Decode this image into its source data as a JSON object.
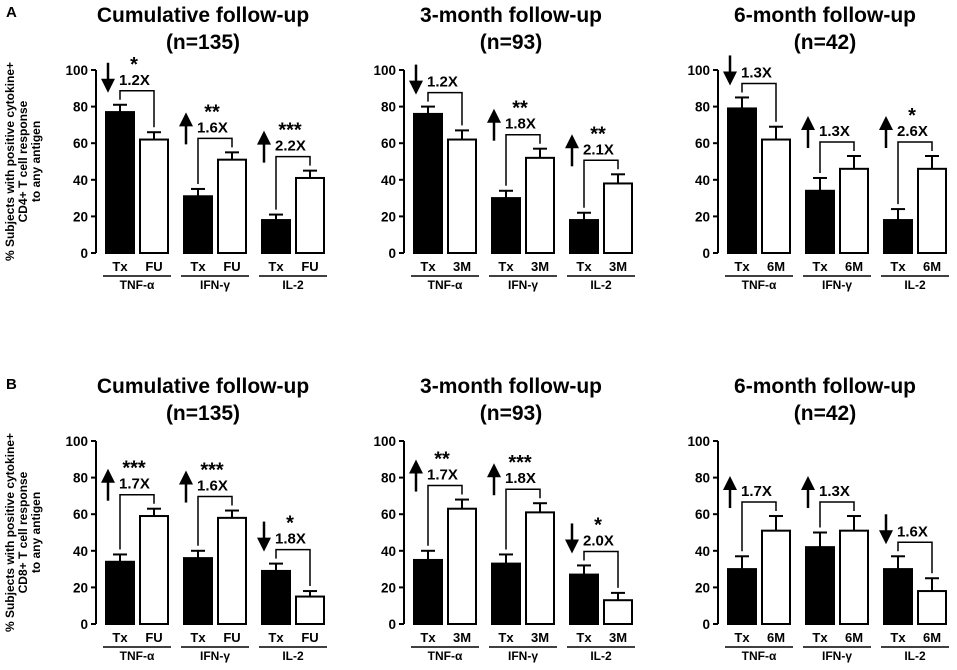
{
  "colors": {
    "treated_fill": "#000000",
    "followup_fill": "#ffffff",
    "stroke": "#000000"
  },
  "chart_data": [
    {
      "type": "bar",
      "panel": "A",
      "title": "Cumulative follow-up",
      "subtitle": "(n=135)",
      "ylabel": "% Subjects with positive cytokine+ CD4+ T cell response to any antigen",
      "ylim": [
        0,
        100
      ],
      "yticks": [
        "0",
        "20",
        "40",
        "60",
        "80",
        "100"
      ],
      "categories": [
        "Tx",
        "FU",
        "Tx",
        "FU",
        "Tx",
        "FU"
      ],
      "groups": [
        "TNF-α",
        "IFN-γ",
        "IL-2"
      ],
      "values": [
        77,
        62,
        31,
        51,
        18,
        41
      ],
      "errors": [
        4,
        4,
        4,
        4,
        3,
        4
      ],
      "annotations": [
        {
          "stars": "*",
          "fold": "1.2X",
          "direction": "down"
        },
        {
          "stars": "**",
          "fold": "1.6X",
          "direction": "up"
        },
        {
          "stars": "***",
          "fold": "2.2X",
          "direction": "up"
        }
      ]
    },
    {
      "type": "bar",
      "panel": "A",
      "title": "3-month follow-up",
      "subtitle": "(n=93)",
      "ylim": [
        0,
        100
      ],
      "yticks": [
        "0",
        "20",
        "40",
        "60",
        "80",
        "100"
      ],
      "categories": [
        "Tx",
        "3M",
        "Tx",
        "3M",
        "Tx",
        "3M"
      ],
      "groups": [
        "TNF-α",
        "IFN-γ",
        "IL-2"
      ],
      "values": [
        76,
        62,
        30,
        52,
        18,
        38
      ],
      "errors": [
        4,
        5,
        4,
        5,
        4,
        5
      ],
      "annotations": [
        {
          "stars": "",
          "fold": "1.2X",
          "direction": "down"
        },
        {
          "stars": "**",
          "fold": "1.8X",
          "direction": "up"
        },
        {
          "stars": "**",
          "fold": "2.1X",
          "direction": "up"
        }
      ]
    },
    {
      "type": "bar",
      "panel": "A",
      "title": "6-month follow-up",
      "subtitle": "(n=42)",
      "ylim": [
        0,
        100
      ],
      "yticks": [
        "0",
        "20",
        "40",
        "60",
        "80",
        "100"
      ],
      "categories": [
        "Tx",
        "6M",
        "Tx",
        "6M",
        "Tx",
        "6M"
      ],
      "groups": [
        "TNF-α",
        "IFN-γ",
        "IL-2"
      ],
      "values": [
        79,
        62,
        34,
        46,
        18,
        46
      ],
      "errors": [
        6,
        7,
        7,
        7,
        6,
        7
      ],
      "annotations": [
        {
          "stars": "",
          "fold": "1.3X",
          "direction": "down"
        },
        {
          "stars": "",
          "fold": "1.3X",
          "direction": "up"
        },
        {
          "stars": "*",
          "fold": "2.6X",
          "direction": "up"
        }
      ]
    },
    {
      "type": "bar",
      "panel": "B",
      "title": "Cumulative follow-up",
      "subtitle": "(n=135)",
      "ylabel": "% Subjects with positive cytokine+ CD8+ T cell response to any antigen",
      "ylim": [
        0,
        100
      ],
      "yticks": [
        "0",
        "20",
        "40",
        "60",
        "80",
        "100"
      ],
      "categories": [
        "Tx",
        "FU",
        "Tx",
        "FU",
        "Tx",
        "FU"
      ],
      "groups": [
        "TNF-α",
        "IFN-γ",
        "IL-2"
      ],
      "values": [
        34,
        59,
        36,
        58,
        29,
        15
      ],
      "errors": [
        4,
        4,
        4,
        4,
        4,
        3
      ],
      "annotations": [
        {
          "stars": "***",
          "fold": "1.7X",
          "direction": "up"
        },
        {
          "stars": "***",
          "fold": "1.6X",
          "direction": "up"
        },
        {
          "stars": "*",
          "fold": "1.8X",
          "direction": "down"
        }
      ]
    },
    {
      "type": "bar",
      "panel": "B",
      "title": "3-month follow-up",
      "subtitle": "(n=93)",
      "ylim": [
        0,
        100
      ],
      "yticks": [
        "0",
        "20",
        "40",
        "60",
        "80",
        "100"
      ],
      "categories": [
        "Tx",
        "3M",
        "Tx",
        "3M",
        "Tx",
        "3M"
      ],
      "groups": [
        "TNF-α",
        "IFN-γ",
        "IL-2"
      ],
      "values": [
        35,
        63,
        33,
        61,
        27,
        13
      ],
      "errors": [
        5,
        5,
        5,
        5,
        5,
        4
      ],
      "annotations": [
        {
          "stars": "**",
          "fold": "1.7X",
          "direction": "up"
        },
        {
          "stars": "***",
          "fold": "1.8X",
          "direction": "up"
        },
        {
          "stars": "*",
          "fold": "2.0X",
          "direction": "down"
        }
      ]
    },
    {
      "type": "bar",
      "panel": "B",
      "title": "6-month follow-up",
      "subtitle": "(n=42)",
      "ylim": [
        0,
        100
      ],
      "yticks": [
        "0",
        "20",
        "40",
        "60",
        "80",
        "100"
      ],
      "categories": [
        "Tx",
        "6M",
        "Tx",
        "6M",
        "Tx",
        "6M"
      ],
      "groups": [
        "TNF-α",
        "IFN-γ",
        "IL-2"
      ],
      "values": [
        30,
        51,
        42,
        51,
        30,
        18
      ],
      "errors": [
        7,
        8,
        8,
        8,
        7,
        7
      ],
      "annotations": [
        {
          "stars": "",
          "fold": "1.7X",
          "direction": "up"
        },
        {
          "stars": "",
          "fold": "1.3X",
          "direction": "up"
        },
        {
          "stars": "",
          "fold": "1.6X",
          "direction": "down"
        }
      ]
    }
  ],
  "panel_labels": {
    "a": "A",
    "b": "B"
  }
}
